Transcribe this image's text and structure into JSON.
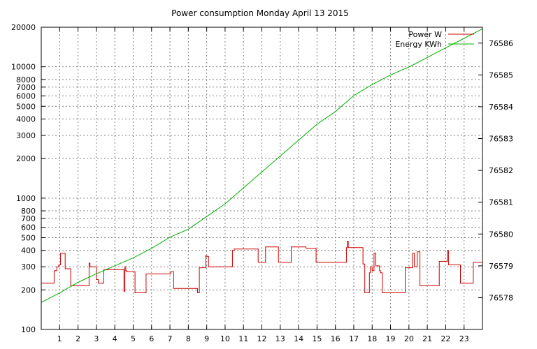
{
  "chart_data": {
    "type": "line",
    "title": "Power consumption Monday April 13 2015",
    "x_ticks": [
      1,
      2,
      3,
      4,
      5,
      6,
      7,
      8,
      9,
      10,
      11,
      12,
      13,
      14,
      15,
      16,
      17,
      18,
      19,
      20,
      21,
      22,
      23
    ],
    "xlim": [
      0,
      24
    ],
    "y1_scale": "log",
    "y1lim": [
      100,
      20000
    ],
    "y1_ticks": [
      100,
      200,
      300,
      400,
      500,
      600,
      700,
      800,
      1000,
      2000,
      3000,
      4000,
      5000,
      6000,
      7000,
      8000,
      10000,
      20000
    ],
    "y2lim": [
      76577.0,
      76586.5
    ],
    "y2_ticks": [
      76578,
      76579,
      76580,
      76581,
      76582,
      76583,
      76584,
      76585,
      76586
    ],
    "grid": true,
    "legend_position": "top-right",
    "colors": {
      "power": "#cc0000",
      "energy": "#00b000"
    },
    "series": [
      {
        "name": "Power W",
        "axis": "y1",
        "step": true,
        "x": [
          0,
          0.65,
          0.7,
          0.85,
          0.95,
          1.05,
          1.3,
          1.6,
          2.5,
          2.6,
          2.65,
          2.75,
          3.0,
          3.1,
          3.4,
          3.45,
          4.5,
          4.55,
          4.6,
          4.65,
          4.7,
          5.1,
          5.7,
          6.85,
          7.05,
          7.2,
          8.45,
          8.5,
          8.6,
          8.95,
          8.98,
          9.1,
          10.4,
          10.5,
          10.95,
          11.1,
          11.8,
          12.2,
          12.9,
          13.6,
          14.4,
          14.95,
          16.0,
          16.6,
          16.65,
          16.7,
          17.5,
          17.6,
          17.85,
          17.9,
          18.0,
          18.1,
          18.2,
          18.4,
          18.45,
          18.55,
          19.4,
          19.8,
          20.2,
          20.3,
          20.45,
          20.6,
          20.75,
          21.5,
          21.65,
          22.0,
          22.1,
          22.15,
          22.3,
          22.8,
          23.5,
          24.0
        ],
        "y": [
          225,
          225,
          280,
          300,
          310,
          380,
          290,
          215,
          215,
          320,
          300,
          300,
          240,
          225,
          285,
          285,
          195,
          300,
          280,
          275,
          275,
          190,
          265,
          265,
          275,
          205,
          205,
          190,
          295,
          365,
          360,
          300,
          400,
          410,
          410,
          410,
          325,
          425,
          325,
          425,
          415,
          325,
          325,
          420,
          470,
          420,
          315,
          190,
          270,
          300,
          280,
          380,
          305,
          280,
          270,
          190,
          190,
          295,
          380,
          300,
          390,
          215,
          215,
          215,
          330,
          330,
          400,
          310,
          310,
          225,
          325,
          325
        ]
      },
      {
        "name": "Energy KWh",
        "axis": "y2",
        "step": false,
        "x": [
          0,
          1,
          2,
          3,
          4,
          5,
          6,
          7,
          8,
          9,
          10,
          11,
          12,
          13,
          14,
          15,
          16,
          17,
          18,
          19,
          20,
          21,
          22,
          23,
          24
        ],
        "y": [
          76577.85,
          76578.15,
          76578.48,
          76578.75,
          76579.0,
          76579.25,
          76579.55,
          76579.9,
          76580.15,
          76580.55,
          76580.95,
          76581.45,
          76581.95,
          76582.45,
          76582.95,
          76583.45,
          76583.85,
          76584.35,
          76584.7,
          76585.0,
          76585.25,
          76585.55,
          76585.85,
          76586.15,
          76586.45
        ]
      }
    ]
  }
}
